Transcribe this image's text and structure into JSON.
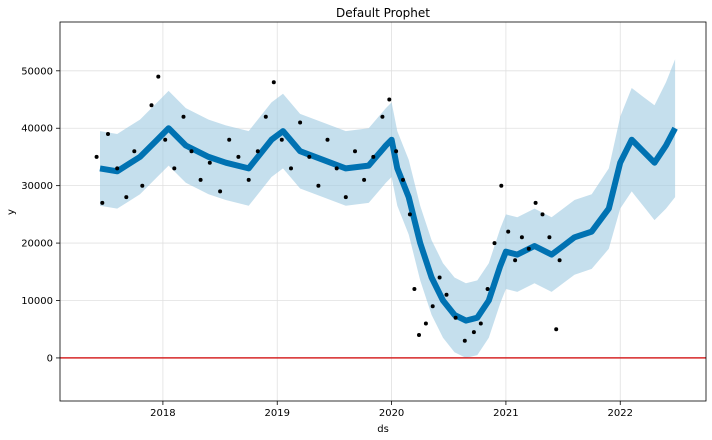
{
  "chart_data": {
    "type": "scatter",
    "title": "Default Prophet",
    "xlabel": "ds",
    "ylabel": "y",
    "xlim": [
      2017.1,
      2022.75
    ],
    "ylim": [
      -7500,
      58500
    ],
    "grid": true,
    "x_ticks": [
      2018,
      2019,
      2020,
      2021,
      2022
    ],
    "x_tick_labels": [
      "2018",
      "2019",
      "2020",
      "2021",
      "2022"
    ],
    "y_ticks": [
      0,
      10000,
      20000,
      30000,
      40000,
      50000
    ],
    "y_tick_labels": [
      "0",
      "10000",
      "20000",
      "30000",
      "40000",
      "50000"
    ],
    "horizontal_line": {
      "y": 0,
      "color": "#d62728"
    },
    "colors": {
      "observed": "#000000",
      "forecast": "#0072b2",
      "uncertainty": "#9ecae1"
    },
    "forecast": {
      "x": [
        2017.45,
        2017.6,
        2017.8,
        2017.95,
        2018.05,
        2018.2,
        2018.4,
        2018.55,
        2018.75,
        2018.95,
        2019.05,
        2019.2,
        2019.4,
        2019.6,
        2019.8,
        2019.95,
        2020.0,
        2020.05,
        2020.15,
        2020.25,
        2020.35,
        2020.45,
        2020.55,
        2020.65,
        2020.75,
        2020.85,
        2020.95,
        2021.0,
        2021.1,
        2021.25,
        2021.4,
        2021.5,
        2021.6,
        2021.75,
        2021.9,
        2022.0,
        2022.1,
        2022.2,
        2022.3,
        2022.4,
        2022.48
      ],
      "yhat": [
        33000,
        32500,
        35000,
        38000,
        40000,
        37000,
        35000,
        34000,
        33000,
        38000,
        39500,
        36000,
        34500,
        33000,
        33500,
        37000,
        38000,
        33000,
        28000,
        20000,
        14000,
        10000,
        7500,
        6500,
        7000,
        10000,
        16000,
        18500,
        18000,
        19500,
        18000,
        19500,
        21000,
        22000,
        26000,
        34000,
        38000,
        36000,
        34000,
        37000,
        40000
      ],
      "yhat_lower": [
        26500,
        26000,
        28500,
        31500,
        33500,
        30500,
        28500,
        27500,
        26500,
        31500,
        33000,
        29500,
        28000,
        26500,
        27000,
        30500,
        31500,
        26500,
        21500,
        13500,
        7500,
        3500,
        1000,
        0,
        500,
        3500,
        9500,
        12000,
        11500,
        13000,
        11500,
        13000,
        14500,
        15500,
        19000,
        26000,
        29000,
        26500,
        24000,
        26000,
        28000
      ],
      "yhat_upper": [
        39500,
        39000,
        41500,
        44500,
        46500,
        43500,
        41500,
        40500,
        39500,
        44500,
        46000,
        42500,
        41000,
        39500,
        40000,
        43500,
        44500,
        39500,
        34500,
        26500,
        20500,
        16500,
        14000,
        13000,
        13500,
        16500,
        22500,
        25000,
        24500,
        26000,
        24500,
        26000,
        27500,
        28500,
        33000,
        42000,
        47000,
        45500,
        44000,
        48000,
        52000
      ]
    },
    "observed": {
      "x": [
        2017.42,
        2017.47,
        2017.52,
        2017.6,
        2017.68,
        2017.75,
        2017.82,
        2017.9,
        2017.96,
        2018.02,
        2018.1,
        2018.18,
        2018.25,
        2018.33,
        2018.41,
        2018.5,
        2018.58,
        2018.66,
        2018.75,
        2018.83,
        2018.9,
        2018.97,
        2019.04,
        2019.12,
        2019.2,
        2019.28,
        2019.36,
        2019.44,
        2019.52,
        2019.6,
        2019.68,
        2019.76,
        2019.84,
        2019.92,
        2019.98,
        2020.04,
        2020.1,
        2020.16,
        2020.2,
        2020.24,
        2020.3,
        2020.36,
        2020.42,
        2020.48,
        2020.56,
        2020.64,
        2020.72,
        2020.78,
        2020.84,
        2020.9,
        2020.96,
        2021.02,
        2021.08,
        2021.14,
        2021.2,
        2021.26,
        2021.32,
        2021.38,
        2021.44,
        2021.47
      ],
      "y": [
        35000,
        27000,
        39000,
        33000,
        28000,
        36000,
        30000,
        44000,
        49000,
        38000,
        33000,
        42000,
        36000,
        31000,
        34000,
        29000,
        38000,
        35000,
        31000,
        36000,
        42000,
        48000,
        38000,
        33000,
        41000,
        35000,
        30000,
        38000,
        33000,
        28000,
        36000,
        31000,
        35000,
        42000,
        45000,
        36000,
        31000,
        25000,
        12000,
        4000,
        6000,
        9000,
        14000,
        11000,
        7000,
        3000,
        4500,
        6000,
        12000,
        20000,
        30000,
        22000,
        17000,
        21000,
        19000,
        27000,
        25000,
        21000,
        5000,
        17000
      ]
    }
  }
}
